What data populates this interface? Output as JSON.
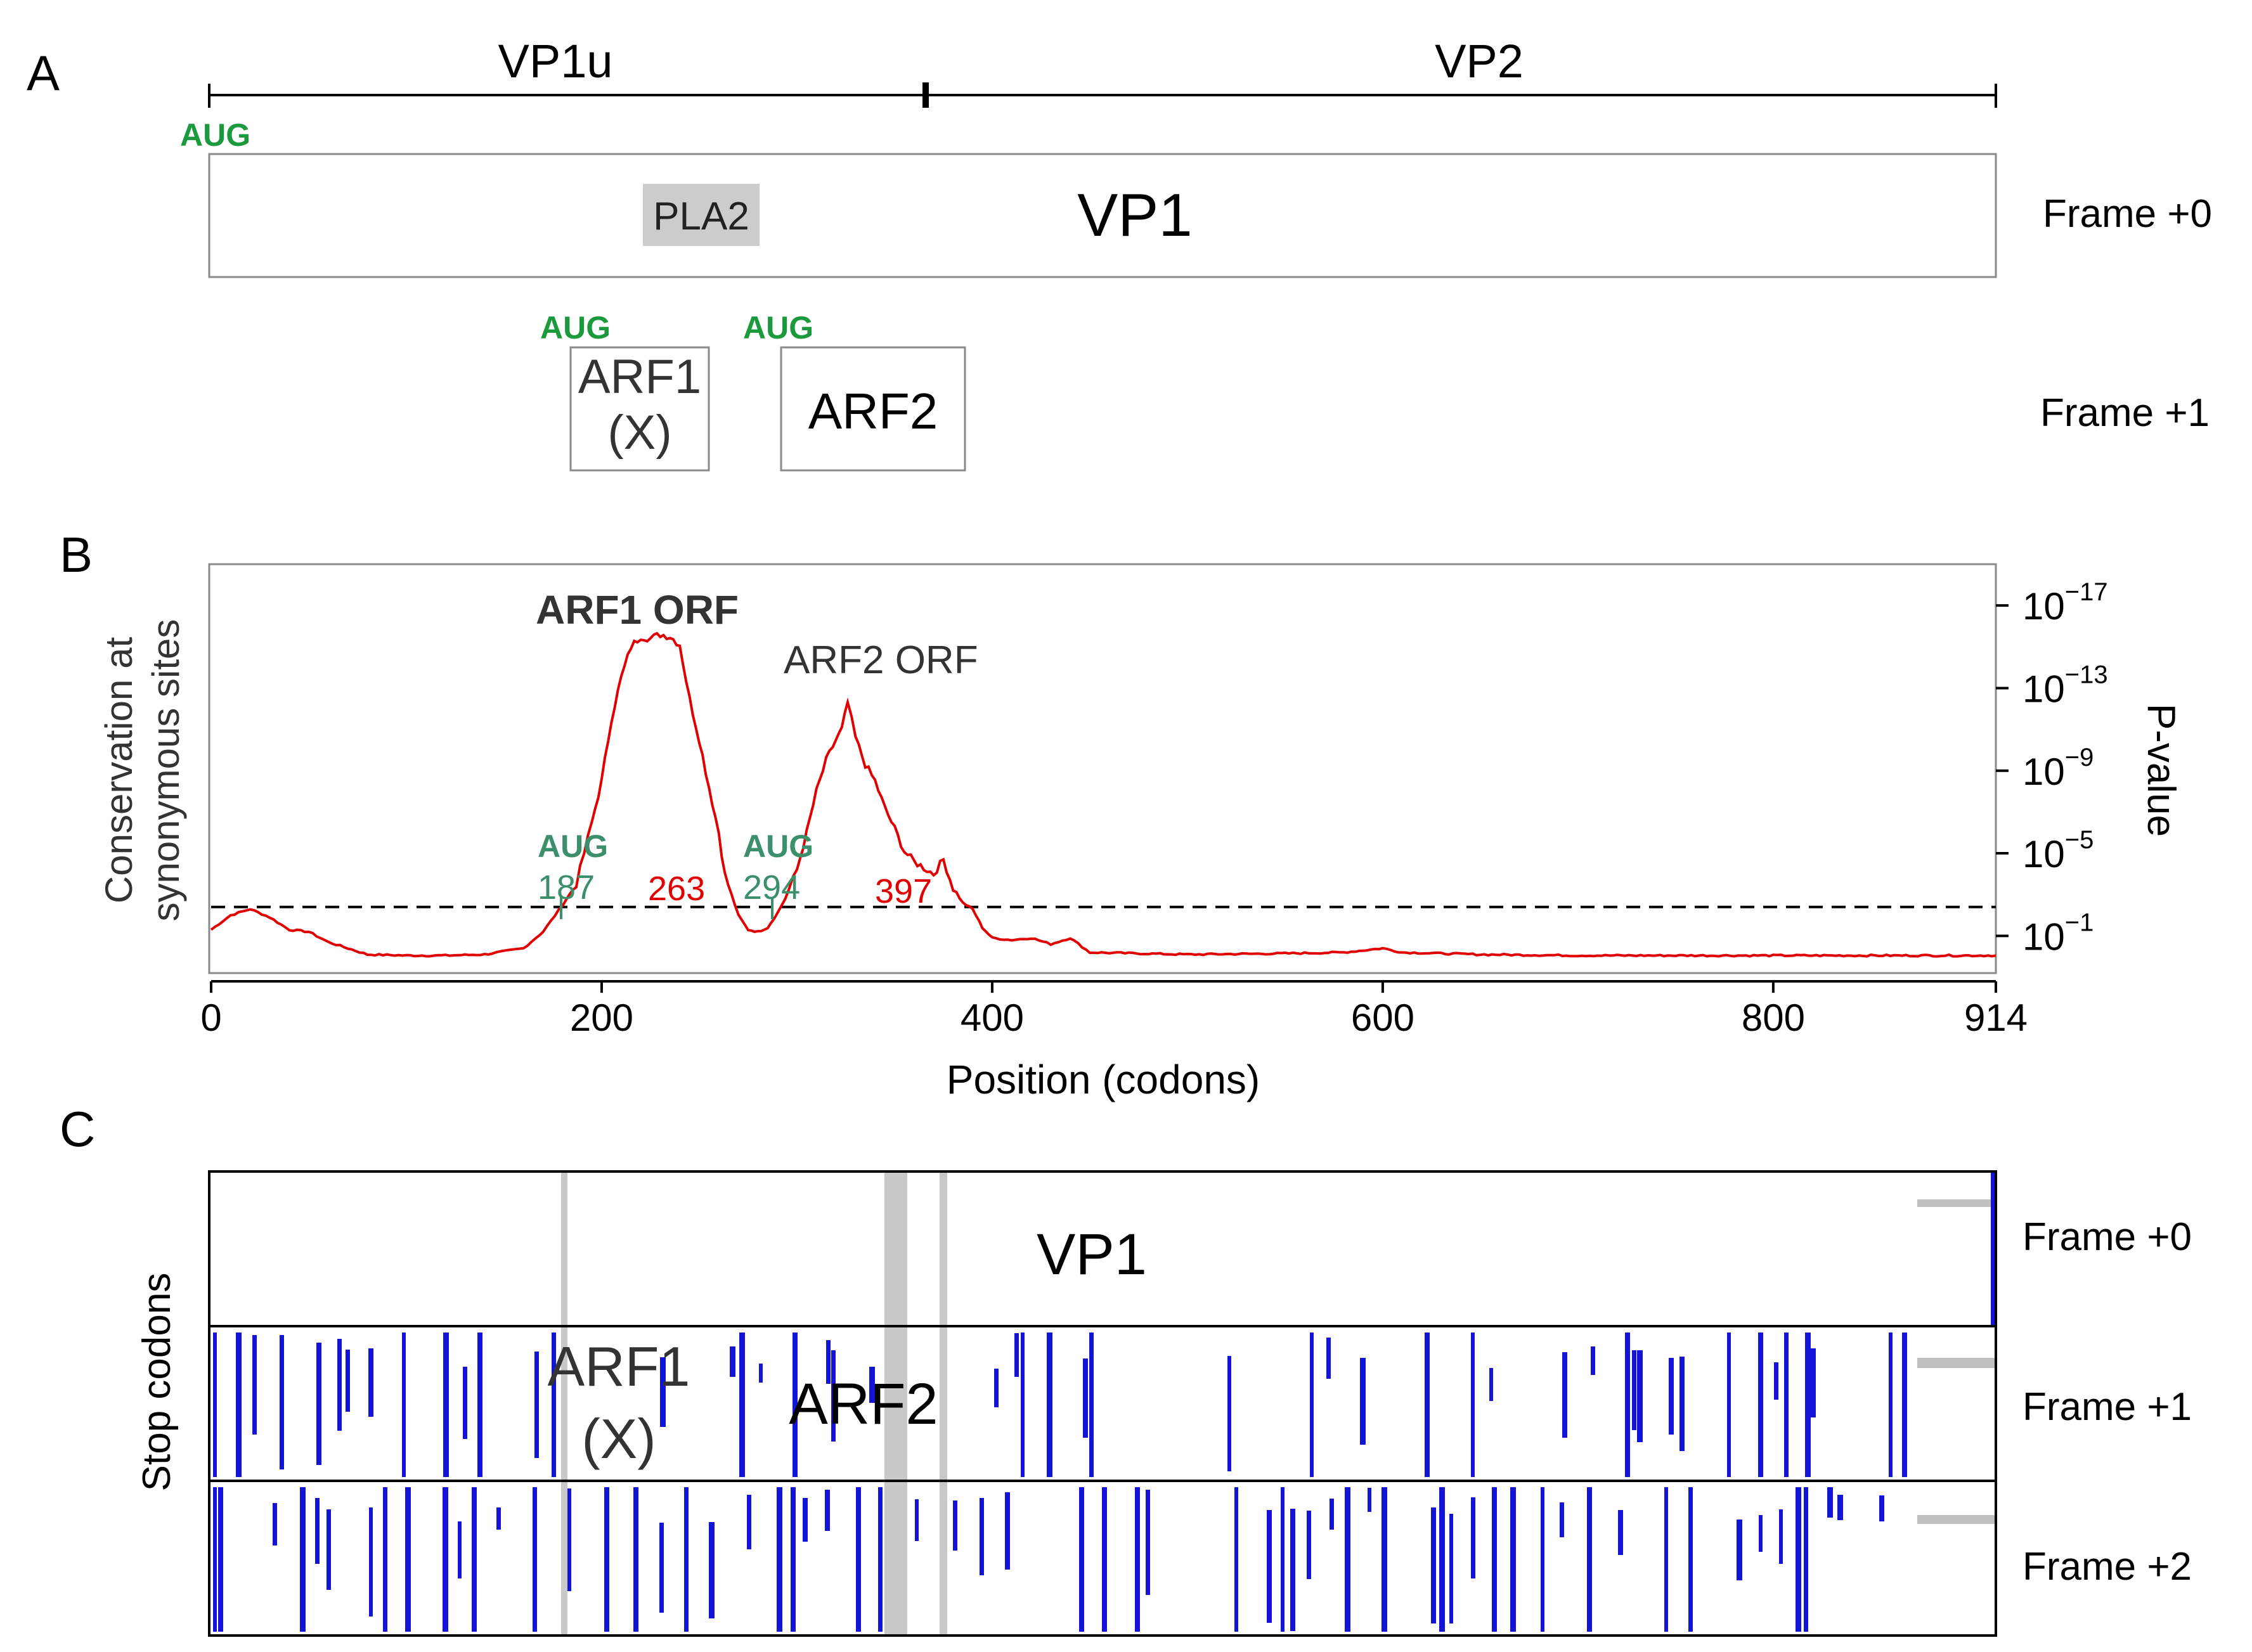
{
  "panel_a": {
    "label": "A",
    "ruler": {
      "left": "VP1u",
      "right": "VP2"
    },
    "start_codon": "AUG",
    "vp1_box": {
      "name": "VP1",
      "domain": "PLA2",
      "frame": "Frame +0"
    },
    "arf1": {
      "codon": "AUG",
      "line1": "ARF1",
      "line2": "(X)"
    },
    "arf2": {
      "codon": "AUG",
      "label": "ARF2"
    },
    "frame_plus1": "Frame +1"
  },
  "panel_b": {
    "label": "B",
    "ylabel_line1": "Conservation at",
    "ylabel_line2": "synonymous sites",
    "right_axis_label": "P-value",
    "xlabel": "Position (codons)",
    "peak1": "ARF1 ORF",
    "peak2": "ARF2 ORF",
    "aug1": {
      "codon": "AUG",
      "start": "187",
      "stop": "263"
    },
    "aug2": {
      "codon": "AUG",
      "start": "294",
      "stop": "397"
    },
    "colors": {
      "curve": "#e00000",
      "aug": "#3b8f6b",
      "stop": "#e00000"
    }
  },
  "panel_c": {
    "label": "C",
    "ylabel": "Stop codons",
    "frames": [
      "Frame +0",
      "Frame +1",
      "Frame +2"
    ],
    "vp1": "VP1",
    "arf1_line1": "ARF1",
    "arf1_line2": "(X)",
    "arf2": "ARF2",
    "colors": {
      "stops": "#1414d8",
      "highlight": "#c8c8c8"
    }
  },
  "chart_data": {
    "type": "line",
    "title": "",
    "xlabel": "Position (codons)",
    "ylabel": "Conservation at synonymous sites",
    "y2label": "P-value",
    "xlim": [
      0,
      914
    ],
    "x_ticks": [
      "0",
      "200",
      "400",
      "600",
      "800",
      "914"
    ],
    "x_tick_values": [
      0,
      200,
      400,
      600,
      800,
      914
    ],
    "y_scale": "-log10(P-value)",
    "ylim": [
      -0.8,
      19
    ],
    "y_ticks": [
      {
        "value": 1,
        "base": "10",
        "exp": "−1"
      },
      {
        "value": 5,
        "base": "10",
        "exp": "−5"
      },
      {
        "value": 9,
        "base": "10",
        "exp": "−9"
      },
      {
        "value": 13,
        "base": "10",
        "exp": "−13"
      },
      {
        "value": 17,
        "base": "10",
        "exp": "−17"
      }
    ],
    "threshold": 2.4,
    "series": [
      {
        "name": "Conservation",
        "x": [
          0,
          10,
          20,
          30,
          40,
          50,
          60,
          70,
          80,
          100,
          120,
          140,
          160,
          170,
          180,
          187,
          195,
          200,
          205,
          210,
          215,
          220,
          225,
          230,
          235,
          240,
          245,
          250,
          255,
          260,
          263,
          270,
          275,
          280,
          285,
          290,
          294,
          300,
          305,
          310,
          315,
          320,
          323,
          326,
          330,
          335,
          340,
          345,
          350,
          355,
          360,
          365,
          370,
          375,
          380,
          385,
          390,
          395,
          400,
          410,
          420,
          430,
          440,
          450,
          500,
          550,
          580,
          600,
          610,
          650,
          700,
          750,
          800,
          850,
          914
        ],
        "values": [
          1.3,
          2.0,
          2.3,
          1.9,
          1.3,
          1.2,
          0.7,
          0.4,
          0.1,
          0.05,
          0.05,
          0.1,
          0.4,
          1.2,
          2.5,
          3.5,
          6.5,
          8.5,
          11.5,
          13.5,
          15.0,
          15.5,
          15.4,
          15.6,
          15.5,
          15.1,
          12.5,
          10.5,
          8.2,
          6.0,
          4.0,
          2.0,
          1.3,
          1.2,
          1.4,
          2.1,
          2.8,
          4.2,
          6.0,
          8.0,
          9.5,
          10.5,
          11.0,
          12.3,
          10.6,
          9.3,
          8.5,
          7.2,
          6.2,
          5.1,
          4.6,
          4.3,
          4.0,
          4.7,
          3.3,
          2.6,
          2.3,
          1.4,
          0.9,
          0.8,
          0.9,
          0.6,
          0.9,
          0.2,
          0.1,
          0.15,
          0.2,
          0.4,
          0.2,
          0.1,
          0.05,
          0.05,
          0.05,
          0.05,
          0.05
        ]
      }
    ],
    "annotations": [
      "ARF1 ORF",
      "ARF2 ORF",
      "AUG 187",
      "263",
      "AUG 294",
      "397"
    ]
  }
}
